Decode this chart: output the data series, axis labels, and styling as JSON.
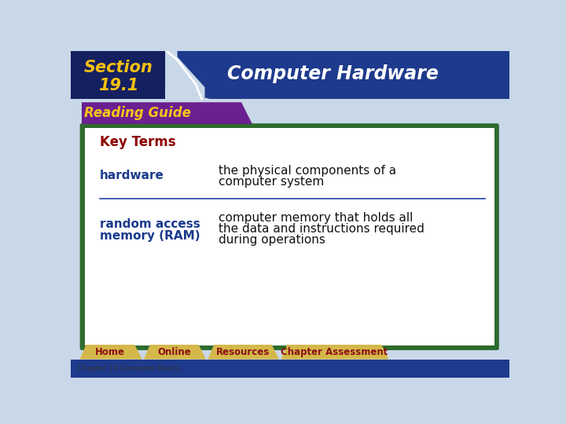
{
  "bg_color": "#c8d8e8",
  "header_bg": "#1e3a8c",
  "section_bg": "#152060",
  "header_title": "Computer Hardware",
  "reading_guide_bg": "#6b2090",
  "reading_guide_text": "Reading Guide",
  "reading_guide_text_color": "#f5c518",
  "key_terms_text": "Key Terms",
  "key_terms_color": "#8b0000",
  "term1": "hardware",
  "term1_color": "#1a3a8c",
  "def1_line1": "the physical components of a",
  "def1_line2": "computer system",
  "term2_line1": "random access",
  "term2_line2": "memory (RAM)",
  "term2_color": "#1a3a8c",
  "def2_line1": "computer memory that holds all",
  "def2_line2": "the data and instructions required",
  "def2_line3": "during operations",
  "footer_bg": "#d4b84a",
  "footer_items": [
    "Home",
    "Online",
    "Resources",
    "Chapter Assessment"
  ],
  "footer_text_color": "#8b1010",
  "chapter_text": "Chapter 19 Computer Basics",
  "chapter_text_color": "#333333",
  "white_box_bg": "#ffffff",
  "green_border": "#2d6b2d",
  "divider_color": "#2244aa",
  "bottom_bar_color": "#1e3a8c"
}
